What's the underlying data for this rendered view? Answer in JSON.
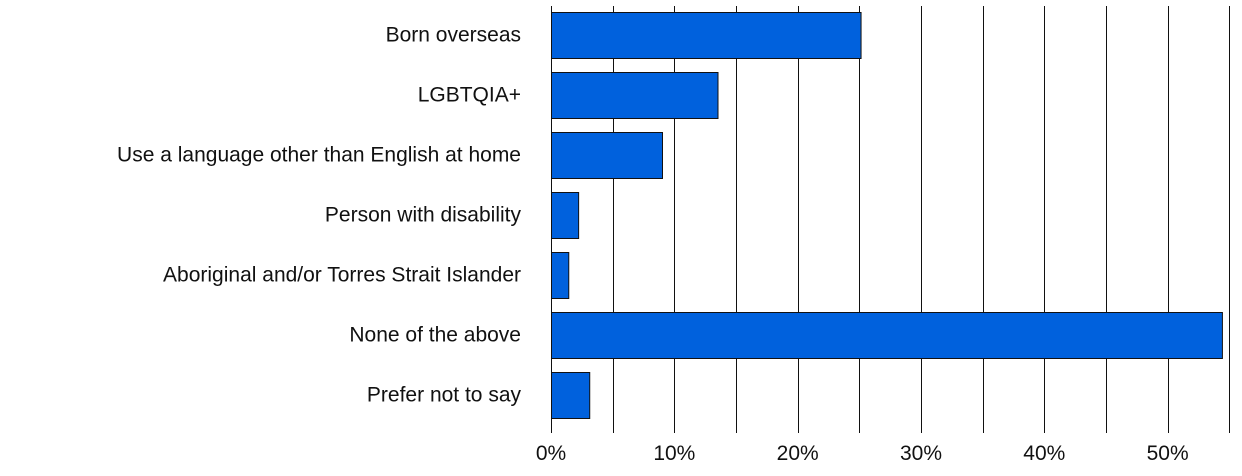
{
  "chart_data": {
    "type": "bar",
    "orientation": "horizontal",
    "title": "",
    "xlabel": "",
    "ylabel": "",
    "categories": [
      "Born overseas",
      "LGBTQIA+",
      "Use a language other than English at home",
      "Person with disability",
      "Aboriginal and/or Torres Strait Islander",
      "None of the above",
      "Prefer not to say"
    ],
    "values": [
      25.1,
      13.5,
      9.0,
      2.2,
      1.4,
      54.4,
      3.1
    ],
    "xlim": [
      0,
      55
    ],
    "x_ticks": [
      0,
      10,
      20,
      30,
      40,
      50
    ],
    "x_tick_labels": [
      "0%",
      "10%",
      "20%",
      "30%",
      "40%",
      "50%"
    ],
    "grid": "vertical",
    "legend": "none",
    "colors": {
      "bar_fill": "#0061DD",
      "bar_stroke": "#111111",
      "grid": "#111111",
      "text": "#111111"
    }
  }
}
